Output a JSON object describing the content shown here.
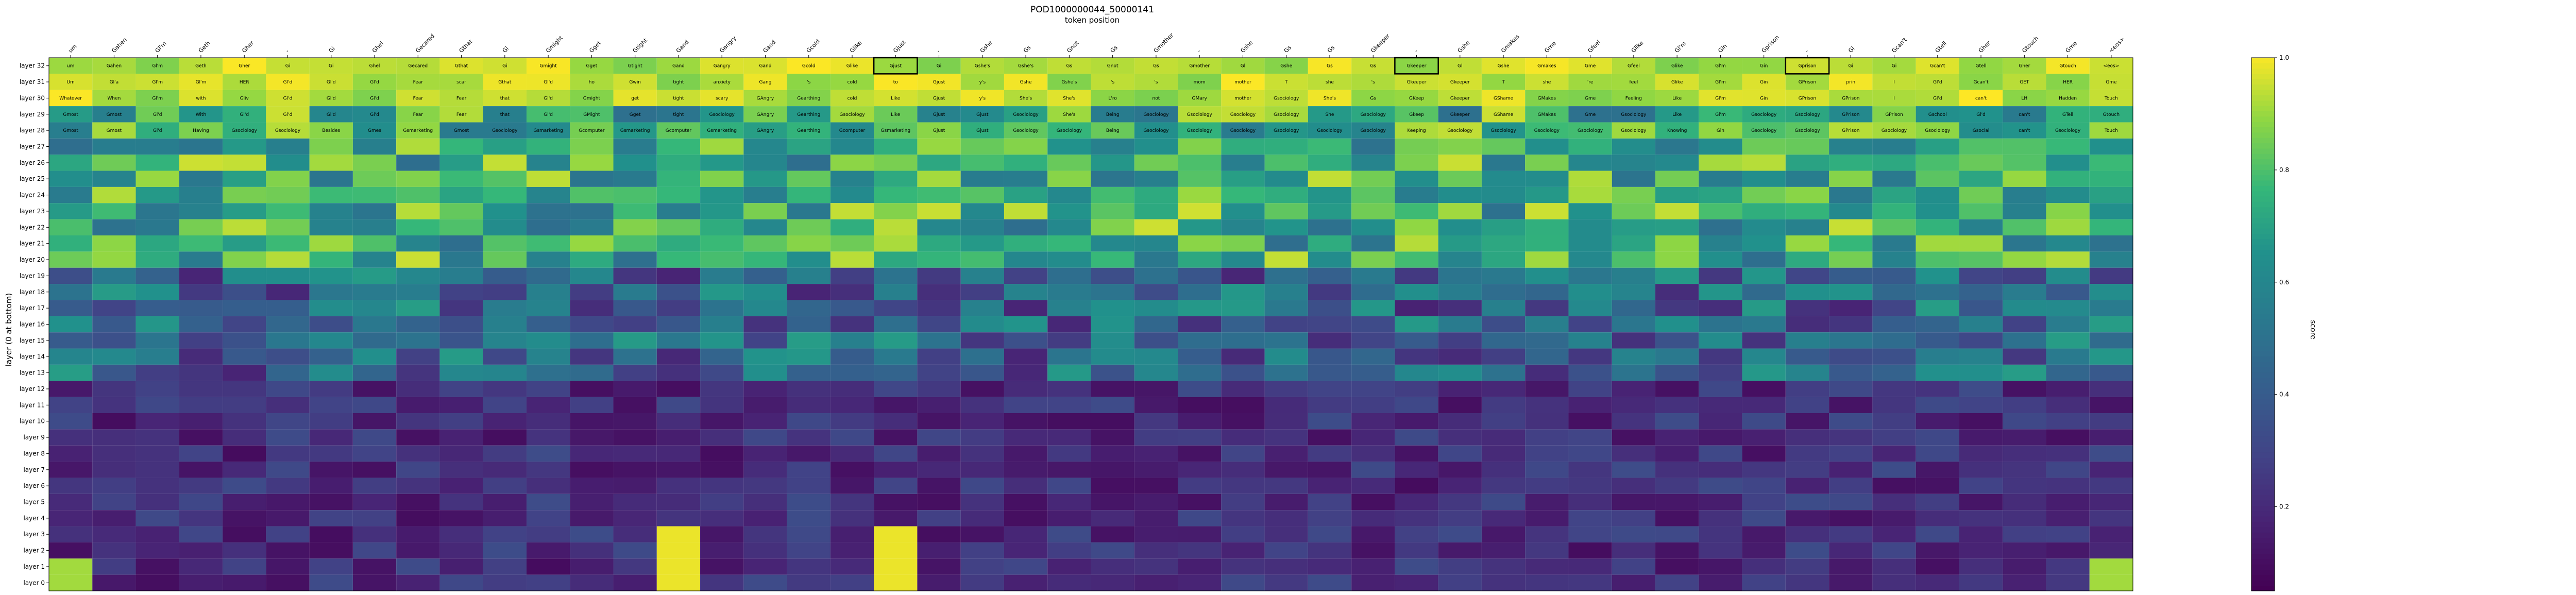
{
  "chart_data": {
    "type": "heatmap",
    "title": "POD1000000044_50000141",
    "xlabel": "token position",
    "ylabel": "layer (0 at bottom)",
    "colorbar_label": "score",
    "colorbar_ticks": [
      "0.2",
      "0.4",
      "0.6",
      "0.8",
      "1.0"
    ],
    "value_range": [
      0.05,
      1.0
    ],
    "colormap": "viridis",
    "x_tokens": [
      "um",
      "Gahen",
      "Gl'm",
      "Geth",
      "Gher",
      "-",
      "Gi",
      "Ghel",
      "Gecared",
      "Gthat",
      "Gi",
      "Gmight",
      "Gget",
      "Gtight",
      "Gand",
      "Gangry",
      "Gand",
      "Gcold",
      "Glike",
      "Gjust",
      "-",
      "Gshe",
      "Gs",
      "Gnot",
      "Gs",
      "Gmother",
      "-",
      "Gshe",
      "Gs",
      "Gs",
      "Gkeeper",
      "-",
      "Gshe",
      "Gmakes",
      "Gme",
      "Gfeel",
      "Glike",
      "Gl'm",
      "Gin",
      "Gprison",
      "-",
      "Gi",
      "Gcan't",
      "Gtell",
      "Gher",
      "Gtouch",
      "Gme",
      "<eos>"
    ],
    "highlight_cols": [
      19,
      31,
      40
    ],
    "row_labels": [
      "layer 32",
      "layer 31",
      "layer 30",
      "layer 29",
      "layer 28",
      "layer 27",
      "layer 26",
      "layer 25",
      "layer 24",
      "layer 23",
      "layer 22",
      "layer 21",
      "layer 20",
      "layer 19",
      "layer 18",
      "layer 17",
      "layer 16",
      "layer 15",
      "layer 14",
      "layer 13",
      "layer 12",
      "layer 11",
      "layer 10",
      "layer 9",
      "layer 8",
      "layer 7",
      "layer 6",
      "layer 5",
      "layer 4",
      "layer 3",
      "layer 2",
      "layer 1",
      "layer 0"
    ],
    "top_words_by_layer": {
      "32": [
        "um",
        "Gahen",
        "Gl'm",
        "Geth",
        "Gher",
        "Gi",
        "Gi",
        "Ghel",
        "Gecared",
        "Gthat",
        "Gi",
        "Gmight",
        "Gget",
        "Gtight",
        "Gand",
        "Gangry",
        "Gand",
        "Gcold",
        "Glike",
        "Gjust",
        "Gi",
        "Gshe's",
        "Gshe's",
        "Gs",
        "Gnot",
        "Gs",
        "Gmother",
        "Gl",
        "Gshe",
        "Gs",
        "Gs",
        "Gkeeper",
        "Gl",
        "Gshe",
        "Gmakes",
        "Gme",
        "Gfeel",
        "Glike",
        "Gl'm",
        "Gin",
        "Gprison",
        "Gi",
        "Gi",
        "Gcan't",
        "Gtell",
        "Gher",
        "Gtouch",
        "<eos>"
      ],
      "31": [
        "Um",
        "Gl'a",
        "Gl'm",
        "Gl'm",
        "HER",
        "Gl'd",
        "Gl'd",
        "Gl'd",
        "Fear",
        "scar",
        "Gthat",
        "Gl'd",
        "ho",
        "Gwin",
        "tight",
        "anxiety",
        "Gang",
        "'s",
        "cold",
        "to",
        "Gjust",
        "y's",
        "Gshe",
        "Gshe's",
        "'s",
        "'s",
        "mom",
        "mother",
        "T",
        "she",
        "'s",
        "Gkeeper",
        "Gkeeper",
        "T",
        "she",
        "'re",
        "feel",
        "Glike",
        "Gl'm",
        "Gin",
        "GPrison",
        "prin",
        "I",
        "Gl'd",
        "Gcan't",
        "GET",
        "HER",
        "Gme"
      ],
      "30": [
        "Whatever",
        "When",
        "Gl'm",
        "with",
        "Gliv",
        "Gl'd",
        "Gl'd",
        "Gl'd",
        "Fear",
        "Fear",
        "that",
        "Gl'd",
        "Gmight",
        "get",
        "tight",
        "scary",
        "GAngry",
        "Gearthing",
        "cold",
        "Like",
        "Gjust",
        "y's",
        "She's",
        "She's",
        "L'ro",
        "not",
        "GMary",
        "mother",
        "Gsociology",
        "She's",
        "Gs",
        "GKeep",
        "Gkeeper",
        "GShame",
        "GMakes",
        "Gme",
        "Feeling",
        "Like",
        "Gl'm",
        "Gin",
        "GPrison",
        "GPrison",
        "I",
        "Gl'd",
        "can't",
        "LH",
        "Hadden",
        "Touch"
      ],
      "29": [
        "Gmost",
        "Gmost",
        "Gl'd",
        "With",
        "Gl'd",
        "Gl'd",
        "Gl'd",
        "Gl'd",
        "Fear",
        "Fear",
        "that",
        "Gl'd",
        "GMight",
        "Gget",
        "tight",
        "Gsociology",
        "GAngry",
        "Gearthing",
        "Gsociology",
        "Like",
        "Gjust",
        "Gjust",
        "Gsociology",
        "She's",
        "Being",
        "Gsociology",
        "Gsociology",
        "Gsociology",
        "Gsociology",
        "She",
        "Gsociology",
        "Gkeep",
        "Gkeeper",
        "GShame",
        "GMakes",
        "Gme",
        "Gsociology",
        "Like",
        "Gl'm",
        "Gsociology",
        "Gsociology",
        "GPrison",
        "GPrison",
        "Gschool",
        "Gl'd",
        "can't",
        "GTell",
        "Gtouch"
      ],
      "28": [
        "Gmost",
        "Gmost",
        "Gl'd",
        "Having",
        "Gsociology",
        "Gsociology",
        "Besides",
        "Gmes",
        "Gsmarketing",
        "Gmost",
        "Gsociology",
        "Gsmarketing",
        "Gcomputer",
        "Gsmarketing",
        "Gcomputer",
        "Gsmarketing",
        "GAngry",
        "Gearthing",
        "Gcomputer",
        "Gsmarketing",
        "Gjust",
        "Gjust",
        "Gsociology",
        "Gsociology",
        "Being",
        "Gsociology",
        "Gsociology",
        "Gsociology",
        "Gsociology",
        "Gsociology",
        "Gsociology",
        "Keeping",
        "Gsociology",
        "Gsociology",
        "Gsociology",
        "Gsociology",
        "Gsociology",
        "Knowing",
        "Gin",
        "Gsociology",
        "Gsociology",
        "GPrison",
        "Gsociology",
        "Gsociology",
        "Gsocial",
        "can't",
        "Gsociology",
        "Touch"
      ]
    },
    "notes": "Heatmap of per-layer top-token predictions across 48 token positions (layers 32 at top to 0 at bottom). Cell color encodes score on a viridis scale from dark purple (~0.05) to yellow (1.0). Upper layers (26-32) are mostly yellow/green (high score); lower layers (0-12) are mostly dark purple (low score) with yellow cells at a few positions (e.g. 'Gand' column and 'Gjust' column in layers 0-3).",
    "grid": false
  }
}
